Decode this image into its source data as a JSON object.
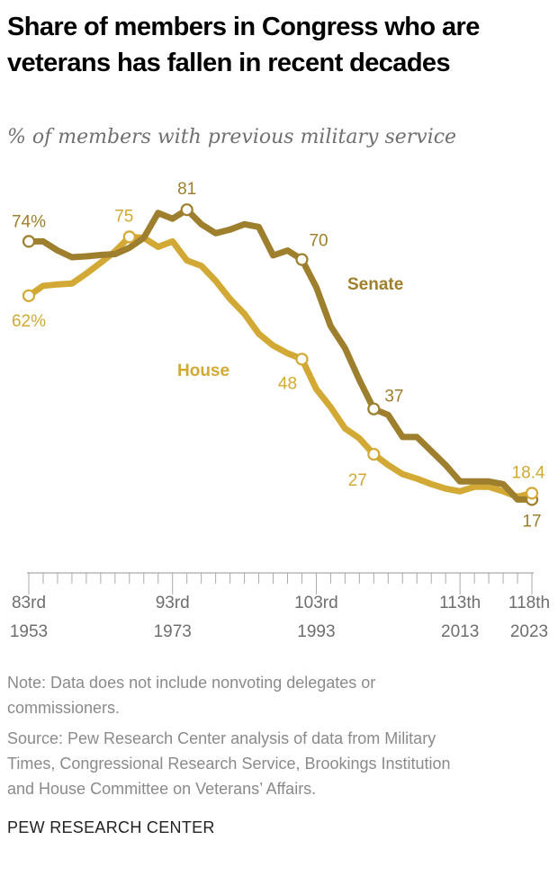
{
  "title": "Share of members in Congress who are veterans has fallen in recent decades",
  "subtitle": "% of members with previous military service",
  "notes": {
    "note": "Note: Data does not include nonvoting delegates or commissioners.",
    "note_lines": [
      "Note: Data does not include nonvoting delegates or",
      "commissioners."
    ],
    "source_lines": [
      "Source: Pew Research Center analysis of data from Military",
      "Times, Congressional Research Service, Brookings Institution",
      "and House Committee on Veterans’ Affairs."
    ]
  },
  "footer": "PEW RESEARCH CENTER",
  "chart_data": {
    "type": "line",
    "title": "Share of members in Congress who are veterans has fallen in recent decades",
    "subtitle": "% of members with previous military service",
    "x": [
      83,
      84,
      85,
      86,
      87,
      88,
      89,
      90,
      91,
      92,
      93,
      94,
      95,
      96,
      97,
      98,
      99,
      100,
      101,
      102,
      103,
      104,
      105,
      106,
      107,
      108,
      109,
      110,
      111,
      112,
      113,
      114,
      115,
      116,
      117,
      118
    ],
    "xlim": [
      83,
      118
    ],
    "ylim": [
      0,
      85
    ],
    "x_ticks": [
      {
        "x": 83,
        "congress": "83rd",
        "year": "1953"
      },
      {
        "x": 93,
        "congress": "93rd",
        "year": "1973"
      },
      {
        "x": 103,
        "congress": "103rd",
        "year": "1993"
      },
      {
        "x": 113,
        "congress": "113th",
        "year": "2013"
      },
      {
        "x": 118,
        "congress": "118th",
        "year": "2023"
      }
    ],
    "grid": false,
    "series": [
      {
        "name": "Senate",
        "color": "#9e7f2e",
        "values": [
          74,
          74,
          72,
          70.5,
          70.7,
          71,
          71.2,
          72.6,
          74.8,
          80.3,
          79,
          81,
          77.8,
          75.8,
          76.6,
          77.8,
          77.2,
          70.9,
          72,
          70,
          63.9,
          55.3,
          50.4,
          43.4,
          37,
          35.7,
          30.8,
          30.8,
          27.7,
          24.6,
          21,
          21,
          21,
          20.4,
          17,
          17
        ]
      },
      {
        "name": "House",
        "color": "#d3a935",
        "values": [
          62,
          64.2,
          64.5,
          64.7,
          66.9,
          69.3,
          71.8,
          75,
          74.8,
          72.8,
          74,
          69.8,
          68.6,
          65.3,
          61.3,
          58,
          53.6,
          51,
          49.3,
          48,
          41.4,
          37.4,
          32.7,
          30.5,
          27,
          24.6,
          22.6,
          21.6,
          20.4,
          19.4,
          18.8,
          19.8,
          19.8,
          18.8,
          17.6,
          18.4
        ]
      }
    ],
    "annotations": [
      {
        "series": "Senate",
        "x": 83,
        "label": "74%"
      },
      {
        "series": "Senate",
        "x": 94,
        "label": "81"
      },
      {
        "series": "Senate",
        "x": 102,
        "label": "70"
      },
      {
        "series": "Senate",
        "x": 107,
        "label": "37"
      },
      {
        "series": "Senate",
        "x": 118,
        "label": "17"
      },
      {
        "series": "House",
        "x": 83,
        "label": "62%"
      },
      {
        "series": "House",
        "x": 90,
        "label": "75"
      },
      {
        "series": "House",
        "x": 102,
        "label": "48"
      },
      {
        "series": "House",
        "x": 107,
        "label": "27"
      },
      {
        "series": "House",
        "x": 118,
        "label": "18.4"
      }
    ]
  }
}
